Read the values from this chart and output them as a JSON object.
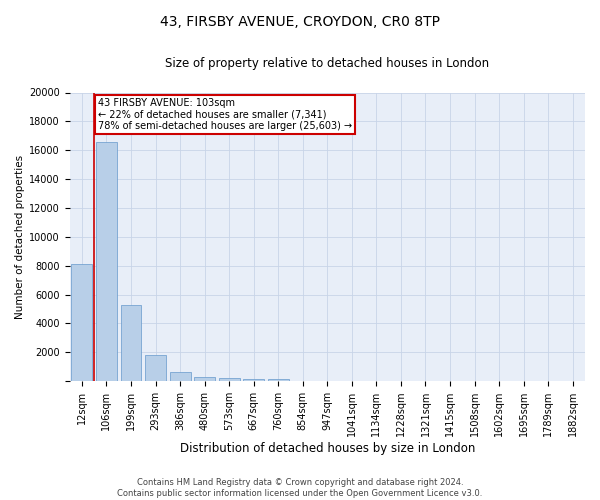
{
  "title": "43, FIRSBY AVENUE, CROYDON, CR0 8TP",
  "subtitle": "Size of property relative to detached houses in London",
  "xlabel": "Distribution of detached houses by size in London",
  "ylabel": "Number of detached properties",
  "footer_line1": "Contains HM Land Registry data © Crown copyright and database right 2024.",
  "footer_line2": "Contains public sector information licensed under the Open Government Licence v3.0.",
  "bar_color": "#b8cfe8",
  "bar_edge_color": "#6699cc",
  "grid_color": "#c8d4e8",
  "annotation_box_color": "#cc0000",
  "vline_color": "#cc0000",
  "categories": [
    "12sqm",
    "106sqm",
    "199sqm",
    "293sqm",
    "386sqm",
    "480sqm",
    "573sqm",
    "667sqm",
    "760sqm",
    "854sqm",
    "947sqm",
    "1041sqm",
    "1134sqm",
    "1228sqm",
    "1321sqm",
    "1415sqm",
    "1508sqm",
    "1602sqm",
    "1695sqm",
    "1789sqm",
    "1882sqm"
  ],
  "values": [
    8100,
    16600,
    5300,
    1800,
    650,
    320,
    200,
    150,
    130,
    0,
    0,
    0,
    0,
    0,
    0,
    0,
    0,
    0,
    0,
    0,
    0
  ],
  "property_label": "43 FIRSBY AVENUE: 103sqm",
  "pct_smaller": "22%",
  "n_smaller": "7,341",
  "pct_larger": "78%",
  "n_larger": "25,603",
  "vline_position": 1,
  "ylim": [
    0,
    20000
  ],
  "yticks": [
    0,
    2000,
    4000,
    6000,
    8000,
    10000,
    12000,
    14000,
    16000,
    18000,
    20000
  ],
  "background_color": "#e8eef8",
  "title_fontsize": 10,
  "subtitle_fontsize": 8.5,
  "xlabel_fontsize": 8.5,
  "ylabel_fontsize": 7.5,
  "tick_fontsize": 7,
  "annotation_fontsize": 7,
  "footer_fontsize": 6
}
